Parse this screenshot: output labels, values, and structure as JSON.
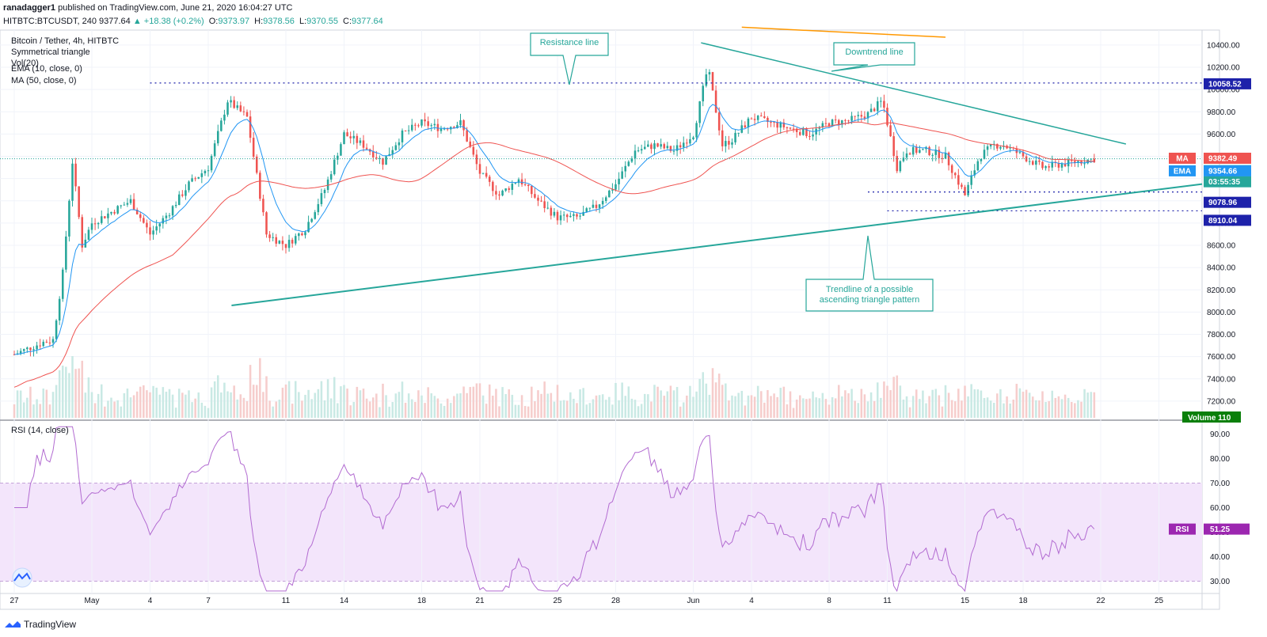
{
  "header": {
    "author": "ranadagger1",
    "published": "published on TradingView.com, June 21, 2020 16:04:27 UTC",
    "symbol": "HITBTC:BTCUSDT, 240",
    "last": "9377.64",
    "change": "▲ +18.38 (+0.2%)",
    "open_label": "O:",
    "open": "9373.97",
    "high_label": "H:",
    "high": "9378.56",
    "low_label": "L:",
    "low": "9370.55",
    "close_label": "C:",
    "close": "9377.64"
  },
  "legend": {
    "line1": "Bitcoin / Tether, 4h, HITBTC",
    "line2": "Symmetrical triangle",
    "line3": "Vol(20)",
    "ema": "EMA (10, close, 0)",
    "ma": "MA (50, close, 0)",
    "rsi": "RSI (14, close)"
  },
  "annotations": {
    "resistance": "Resistance line",
    "downtrend": "Downtrend line",
    "trendline_1": "Trendline of a possible",
    "trendline_2": "ascending triangle pattern"
  },
  "price_badges": [
    {
      "label": "MA",
      "value": "9382.49",
      "color": "#ef5350"
    },
    {
      "label": "",
      "value": "9377.64",
      "color": "#26a69a"
    },
    {
      "label": "",
      "value": "03:55:35",
      "color": "#26a69a"
    },
    {
      "label": "EMA",
      "value": "9354.66",
      "color": "#2196f3"
    },
    {
      "label": "",
      "value": "9078.96",
      "color": "#1e22aa"
    },
    {
      "label": "",
      "value": "8910.04",
      "color": "#1e22aa"
    },
    {
      "label": "",
      "value": "10058.52",
      "color": "#1e22aa"
    }
  ],
  "volume_badge": {
    "label": "Volume",
    "value": "110",
    "color": "#0a7f0a"
  },
  "rsi_badge": {
    "label": "RSI",
    "value": "51.25",
    "color": "#9c27b0"
  },
  "brand": "TradingView",
  "colors": {
    "up": "#26a69a",
    "down": "#ef5350",
    "ema": "#2196f3",
    "ma": "#ef5350",
    "trend": "#26a69a",
    "level": "#1e22aa",
    "rsi": "#b26bd1",
    "rsi_band": "#f3e5fb"
  },
  "chart_data": {
    "type": "candlestick",
    "title": "Bitcoin / Tether, 4h, HITBTC",
    "x_tick_labels": [
      "27",
      "May",
      "4",
      "7",
      "11",
      "14",
      "18",
      "21",
      "25",
      "28",
      "Jun",
      "4",
      "8",
      "11",
      "15",
      "18",
      "22",
      "25"
    ],
    "price_axis": {
      "ticks": [
        7200,
        7400,
        7600,
        7800,
        8000,
        8200,
        8400,
        8600,
        8800,
        9000,
        9200,
        9400,
        9600,
        9800,
        10000,
        10200,
        10400
      ],
      "range": [
        7050,
        10520
      ]
    },
    "levels": [
      10058.52,
      9078.96,
      8910.04
    ],
    "price_path": [
      [
        "Apr 27 00:00",
        7620
      ],
      [
        "Apr 28 12:00",
        7730
      ],
      [
        "Apr 29 00:00",
        7750
      ],
      [
        "Apr 29 12:00",
        8350
      ],
      [
        "Apr 30 00:00",
        9350
      ],
      [
        "Apr 30 12:00",
        8600
      ],
      [
        "May 1 00:00",
        8800
      ],
      [
        "May 2 00:00",
        8900
      ],
      [
        "May 3 00:00",
        9000
      ],
      [
        "May 4 00:00",
        8700
      ],
      [
        "May 5 00:00",
        8900
      ],
      [
        "May 6 00:00",
        9150
      ],
      [
        "May 7 00:00",
        9300
      ],
      [
        "May 8 00:00",
        9900
      ],
      [
        "May 9 00:00",
        9750
      ],
      [
        "May 10 00:00",
        8700
      ],
      [
        "May 11 00:00",
        8600
      ],
      [
        "May 12 00:00",
        8750
      ],
      [
        "May 13 00:00",
        9100
      ],
      [
        "May 14 00:00",
        9600
      ],
      [
        "May 15 00:00",
        9500
      ],
      [
        "May 16 00:00",
        9350
      ],
      [
        "May 17 00:00",
        9600
      ],
      [
        "May 18 00:00",
        9700
      ],
      [
        "May 19 00:00",
        9650
      ],
      [
        "May 20 00:00",
        9700
      ],
      [
        "May 21 00:00",
        9250
      ],
      [
        "May 22 00:00",
        9050
      ],
      [
        "May 23 00:00",
        9200
      ],
      [
        "May 24 00:00",
        9000
      ],
      [
        "May 25 00:00",
        8850
      ],
      [
        "May 26 00:00",
        8850
      ],
      [
        "May 27 00:00",
        8950
      ],
      [
        "May 28 00:00",
        9150
      ],
      [
        "May 29 00:00",
        9450
      ],
      [
        "May 30 00:00",
        9500
      ],
      [
        "May 31 00:00",
        9450
      ],
      [
        "Jun 1 00:00",
        9600
      ],
      [
        "Jun 1 18:00",
        10200
      ],
      [
        "Jun 2 12:00",
        9500
      ],
      [
        "Jun 3 00:00",
        9550
      ],
      [
        "Jun 4 00:00",
        9750
      ],
      [
        "Jun 5 00:00",
        9700
      ],
      [
        "Jun 6 00:00",
        9650
      ],
      [
        "Jun 7 00:00",
        9600
      ],
      [
        "Jun 8 00:00",
        9700
      ],
      [
        "Jun 9 00:00",
        9720
      ],
      [
        "Jun 10 00:00",
        9780
      ],
      [
        "Jun 10 18:00",
        9900
      ],
      [
        "Jun 11 12:00",
        9300
      ],
      [
        "Jun 12 00:00",
        9450
      ],
      [
        "Jun 13 00:00",
        9450
      ],
      [
        "Jun 14 00:00",
        9400
      ],
      [
        "Jun 15 00:00",
        9050
      ],
      [
        "Jun 15 18:00",
        9400
      ],
      [
        "Jun 16 12:00",
        9500
      ],
      [
        "Jun 17 00:00",
        9500
      ],
      [
        "Jun 18 00:00",
        9400
      ],
      [
        "Jun 19 00:00",
        9300
      ],
      [
        "Jun 20 00:00",
        9330
      ],
      [
        "Jun 21 16:00",
        9377.64
      ]
    ],
    "rsi_axis": {
      "ticks": [
        30,
        40,
        50,
        60,
        70,
        80,
        90
      ],
      "range": [
        25,
        95
      ],
      "band": [
        30,
        70
      ]
    },
    "last_rsi": 51.25
  }
}
